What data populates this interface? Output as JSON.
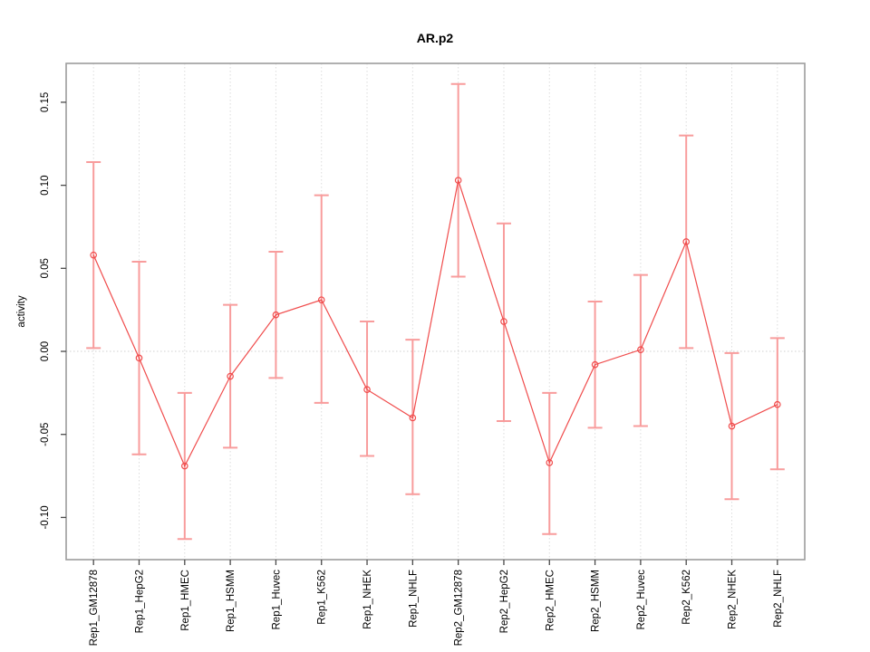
{
  "chart_data": {
    "type": "line",
    "title": "AR.p2",
    "xlabel": "",
    "ylabel": "activity",
    "legend": "none",
    "grid": "vertical dotted gridline at each category; dotted horizontal line at y=0",
    "categories": [
      "Rep1_GM12878",
      "Rep1_HepG2",
      "Rep1_HMEC",
      "Rep1_HSMM",
      "Rep1_Huvec",
      "Rep1_K562",
      "Rep1_NHEK",
      "Rep1_NHLF",
      "Rep2_GM12878",
      "Rep2_HepG2",
      "Rep2_HMEC",
      "Rep2_HSMM",
      "Rep2_Huvec",
      "Rep2_K562",
      "Rep2_NHEK",
      "Rep2_NHLF"
    ],
    "series": [
      {
        "name": "activity",
        "values": [
          0.058,
          -0.004,
          -0.069,
          -0.015,
          0.022,
          0.031,
          -0.023,
          -0.04,
          0.103,
          0.018,
          -0.067,
          -0.008,
          0.001,
          0.066,
          -0.045,
          -0.032
        ],
        "lower": [
          0.002,
          -0.062,
          -0.113,
          -0.058,
          -0.016,
          -0.031,
          -0.063,
          -0.086,
          0.045,
          -0.042,
          -0.11,
          -0.046,
          -0.045,
          0.002,
          -0.089,
          -0.071
        ],
        "upper": [
          0.114,
          0.054,
          -0.025,
          0.028,
          0.06,
          0.094,
          0.018,
          0.007,
          0.161,
          0.077,
          -0.025,
          0.03,
          0.046,
          0.13,
          -0.001,
          0.008
        ]
      }
    ],
    "ylim": [
      -0.1254,
      0.1734
    ],
    "xlim": [
      0.4,
      16.6
    ],
    "ytick_values": [
      -0.1,
      -0.05,
      0.0,
      0.05,
      0.1,
      0.15
    ],
    "ytick_labels": [
      "-0.10",
      "-0.05",
      "0.00",
      "0.05",
      "0.10",
      "0.15"
    ],
    "colors": {
      "line": "#f04c4c",
      "marker": "#f04c4c",
      "error_bar": "#f89c9c",
      "grid": "#dcdcdc",
      "zero_line": "#d0d0d0",
      "box": "#9d9d9d",
      "tick": "#4a4a4a",
      "text": "#000000",
      "background": "#ffffff"
    }
  }
}
